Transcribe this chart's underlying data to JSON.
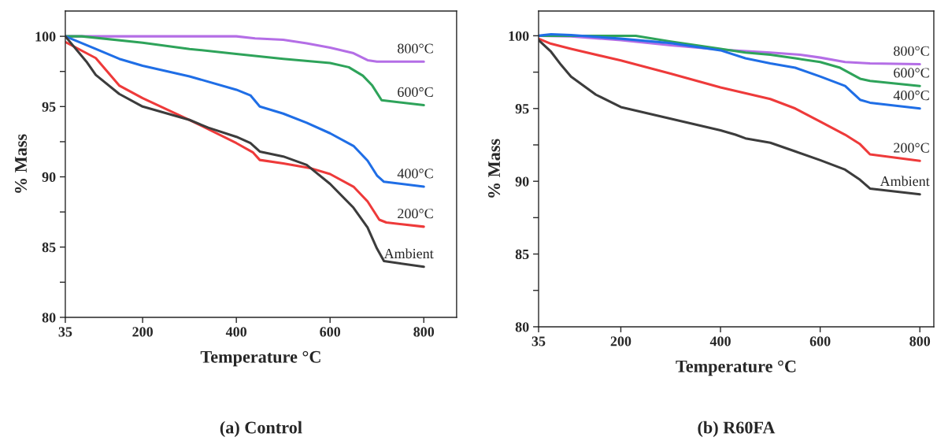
{
  "chart_data": [
    {
      "type": "line",
      "title": "(a) Control",
      "xlabel": "Temperature °C",
      "ylabel": "% Mass",
      "xlim": [
        35,
        870
      ],
      "ylim": [
        80,
        101.8
      ],
      "xticks": [
        35,
        200,
        400,
        600,
        800
      ],
      "yticks": [
        80,
        {
          "value": 82.5,
          "label": null
        },
        85,
        {
          "value": 87.5,
          "label": null
        },
        90,
        {
          "value": 92.5,
          "label": null
        },
        95,
        {
          "value": 97.5,
          "label": null
        },
        100
      ],
      "grid": false,
      "legend": false,
      "series": [
        {
          "name": "800°C",
          "color": "#b46ee6",
          "x": [
            35,
            100,
            200,
            300,
            400,
            440,
            500,
            550,
            600,
            650,
            680,
            700,
            800
          ],
          "values": [
            100,
            100,
            100,
            100,
            100,
            99.85,
            99.75,
            99.5,
            99.2,
            98.8,
            98.3,
            98.2,
            98.2
          ]
        },
        {
          "name": "600°C",
          "color": "#2ea35a",
          "x": [
            35,
            70,
            200,
            300,
            400,
            500,
            600,
            640,
            670,
            690,
            710,
            800
          ],
          "values": [
            100,
            100,
            99.55,
            99.1,
            98.75,
            98.4,
            98.1,
            97.8,
            97.2,
            96.5,
            95.45,
            95.1
          ]
        },
        {
          "name": "400°C",
          "color": "#1f6ee6",
          "x": [
            35,
            100,
            150,
            200,
            300,
            400,
            430,
            450,
            500,
            550,
            600,
            650,
            680,
            700,
            715,
            800
          ],
          "values": [
            100,
            99.1,
            98.4,
            97.9,
            97.15,
            96.2,
            95.8,
            95.0,
            94.5,
            93.85,
            93.1,
            92.2,
            91.15,
            90.1,
            89.65,
            89.3
          ]
        },
        {
          "name": "200°C",
          "color": "#ee3a3a",
          "x": [
            35,
            100,
            150,
            200,
            300,
            400,
            435,
            450,
            500,
            560,
            600,
            650,
            680,
            705,
            720,
            800
          ],
          "values": [
            99.6,
            98.45,
            96.5,
            95.6,
            94.05,
            92.4,
            91.75,
            91.2,
            90.95,
            90.6,
            90.2,
            89.3,
            88.25,
            86.95,
            86.75,
            86.45
          ]
        },
        {
          "name": "Ambient",
          "color": "#3c3c3c",
          "x": [
            35,
            80,
            100,
            150,
            200,
            300,
            340,
            400,
            430,
            450,
            500,
            550,
            600,
            650,
            680,
            700,
            715,
            800
          ],
          "values": [
            100,
            98.2,
            97.25,
            95.9,
            95.0,
            94.05,
            93.5,
            92.85,
            92.4,
            91.8,
            91.45,
            90.85,
            89.5,
            87.8,
            86.4,
            84.9,
            84.0,
            83.6
          ]
        }
      ]
    },
    {
      "type": "line",
      "title": "(b) R60FA",
      "xlabel": "Temperature °C",
      "ylabel": "% Mass",
      "xlim": [
        35,
        828
      ],
      "ylim": [
        80,
        101.7
      ],
      "xticks": [
        35,
        200,
        400,
        600,
        800
      ],
      "yticks": [
        80,
        {
          "value": 82.5,
          "label": null
        },
        85,
        {
          "value": 87.5,
          "label": null
        },
        90,
        {
          "value": 92.5,
          "label": null
        },
        95,
        {
          "value": 97.5,
          "label": null
        },
        100
      ],
      "grid": false,
      "legend": false,
      "series": [
        {
          "name": "800°C",
          "color": "#b46ee6",
          "x": [
            35,
            100,
            200,
            300,
            400,
            500,
            560,
            600,
            650,
            700,
            800
          ],
          "values": [
            100,
            99.95,
            99.7,
            99.35,
            99.05,
            98.85,
            98.7,
            98.5,
            98.2,
            98.1,
            98.05
          ]
        },
        {
          "name": "600°C",
          "color": "#2ea35a",
          "x": [
            35,
            100,
            230,
            300,
            400,
            450,
            500,
            550,
            600,
            640,
            680,
            700,
            800
          ],
          "values": [
            100,
            100,
            100,
            99.6,
            99.1,
            98.85,
            98.7,
            98.45,
            98.2,
            97.8,
            97.05,
            96.9,
            96.55
          ]
        },
        {
          "name": "400°C",
          "color": "#1f6ee6",
          "x": [
            35,
            60,
            100,
            200,
            300,
            400,
            450,
            500,
            550,
            600,
            650,
            680,
            700,
            800
          ],
          "values": [
            100,
            100.1,
            100.05,
            99.8,
            99.5,
            99.0,
            98.45,
            98.1,
            97.8,
            97.2,
            96.55,
            95.6,
            95.4,
            95.0
          ]
        },
        {
          "name": "200°C",
          "color": "#ee3a3a",
          "x": [
            35,
            60,
            100,
            200,
            300,
            400,
            500,
            550,
            600,
            650,
            680,
            700,
            800
          ],
          "values": [
            99.8,
            99.45,
            99.1,
            98.3,
            97.4,
            96.45,
            95.65,
            95.0,
            94.1,
            93.2,
            92.55,
            91.85,
            91.4
          ]
        },
        {
          "name": "Ambient",
          "color": "#3c3c3c",
          "x": [
            35,
            60,
            80,
            100,
            150,
            200,
            300,
            400,
            430,
            450,
            500,
            550,
            600,
            650,
            680,
            700,
            800
          ],
          "values": [
            99.7,
            98.9,
            98.0,
            97.2,
            95.95,
            95.1,
            94.3,
            93.5,
            93.2,
            92.95,
            92.65,
            92.05,
            91.45,
            90.8,
            90.1,
            89.5,
            89.1
          ]
        }
      ]
    }
  ]
}
